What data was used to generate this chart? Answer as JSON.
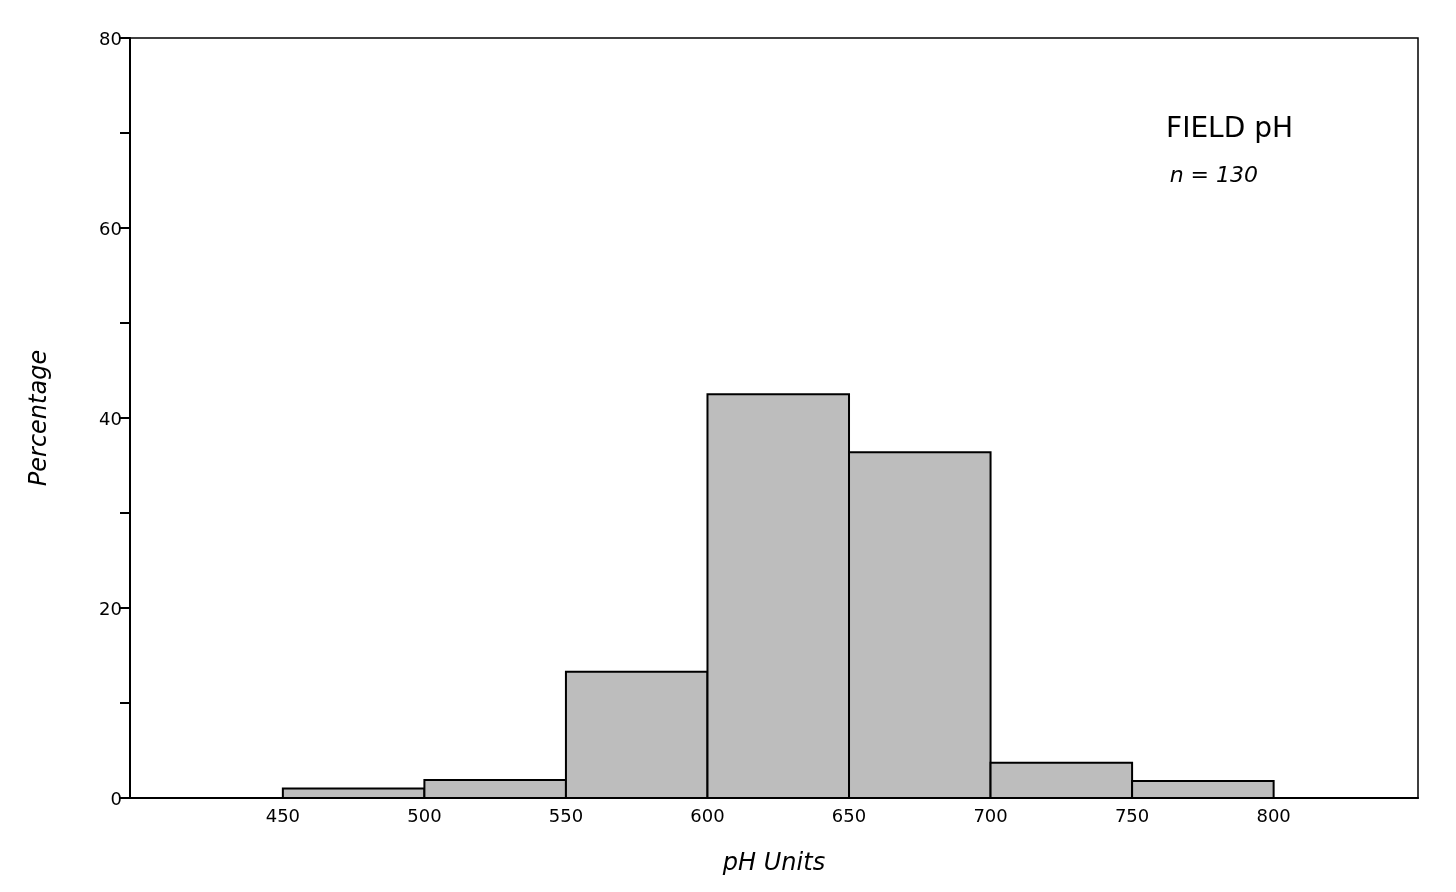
{
  "chart_data": {
    "type": "histogram",
    "title": "FIELD pH",
    "annotations": [
      "n = 130"
    ],
    "xlabel": "pH Units",
    "ylabel": "Percentage",
    "bins": [
      450,
      500,
      550,
      600,
      650,
      700,
      750,
      800
    ],
    "values": [
      1.0,
      1.9,
      13.3,
      42.5,
      36.4,
      3.7,
      1.8
    ],
    "color": "#bdbdbd",
    "xlim": [
      396,
      851
    ],
    "xticks": [
      450,
      500,
      550,
      600,
      650,
      700,
      750,
      800
    ],
    "ylim": [
      0,
      80
    ],
    "yticks": [
      0,
      {
        "value": 10,
        "label": null
      },
      20,
      {
        "value": 30,
        "label": null
      },
      40,
      {
        "value": 50,
        "label": null
      },
      60,
      {
        "value": 70,
        "label": null
      },
      80
    ],
    "grid": false
  }
}
